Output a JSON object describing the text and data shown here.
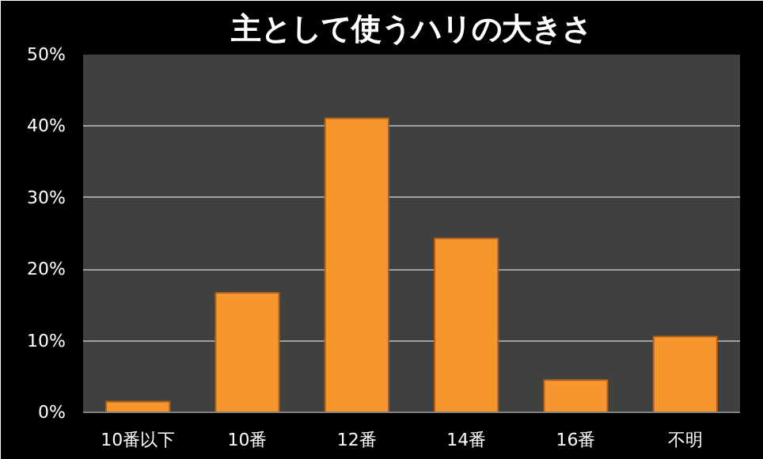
{
  "chart_data": {
    "type": "bar",
    "title": "主として使うハリの大きさ",
    "categories": [
      "10番以下",
      "10番",
      "12番",
      "14番",
      "16番",
      "不明"
    ],
    "values": [
      1.5,
      16.7,
      41.1,
      24.3,
      4.5,
      10.6
    ],
    "color": "#f7962e",
    "ylim": [
      0,
      50
    ],
    "yticks": [
      {
        "value": 0,
        "label": "0%"
      },
      {
        "value": 10,
        "label": "10%"
      },
      {
        "value": 20,
        "label": "20%"
      },
      {
        "value": 30,
        "label": "30%"
      },
      {
        "value": 40,
        "label": "40%"
      },
      {
        "value": 50,
        "label": "50%"
      }
    ],
    "grid": "y"
  }
}
